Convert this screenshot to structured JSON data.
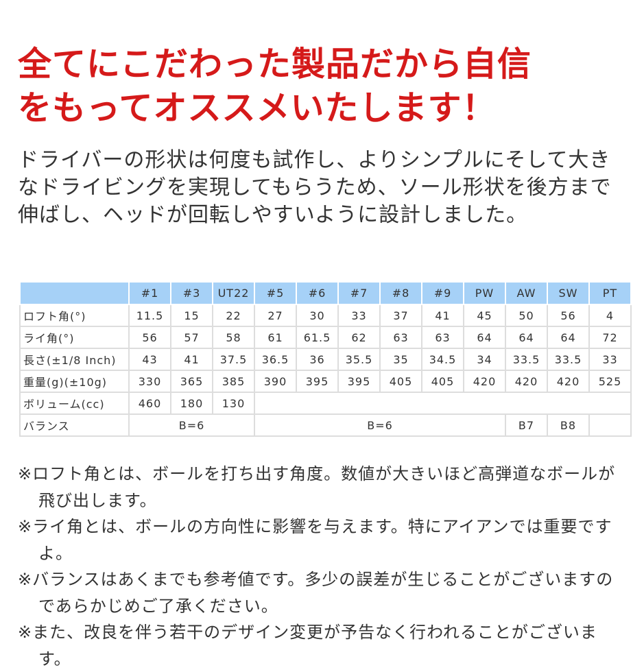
{
  "title": [
    "全てにこだわった製品だから自信",
    "をもってオススメいたします！"
  ],
  "intro": "ドライバーの形状は何度も試作し、よりシンプルにそして大きなドライビングを実現してもらうため、ソール形状を後方まで伸ばし、ヘッドが回転しやすいように設計しました。",
  "table": {
    "header_color": "#a6d1f7",
    "columns": [
      "#1",
      "#3",
      "UT22",
      "#5",
      "#6",
      "#7",
      "#8",
      "#9",
      "PW",
      "AW",
      "SW",
      "PT"
    ],
    "rows": [
      {
        "label": "ロフト角(°)",
        "values": [
          "11.5",
          "15",
          "22",
          "27",
          "30",
          "33",
          "37",
          "41",
          "45",
          "50",
          "56",
          "4"
        ]
      },
      {
        "label": "ライ角(°)",
        "values": [
          "56",
          "57",
          "58",
          "61",
          "61.5",
          "62",
          "63",
          "63",
          "64",
          "64",
          "64",
          "72"
        ]
      },
      {
        "label": "長さ(±1/8 Inch)",
        "values": [
          "43",
          "41",
          "37.5",
          "36.5",
          "36",
          "35.5",
          "35",
          "34.5",
          "34",
          "33.5",
          "33.5",
          "33"
        ]
      },
      {
        "label": "重量(g)(±10g)",
        "values": [
          "330",
          "365",
          "385",
          "390",
          "395",
          "395",
          "405",
          "405",
          "420",
          "420",
          "420",
          "525"
        ]
      },
      {
        "label": "ボリューム(cc)",
        "values": [
          "460",
          "180",
          "130"
        ]
      },
      {
        "label": "バランス",
        "values": [
          "B=6",
          "B=6",
          "B7",
          "B8",
          ""
        ]
      }
    ]
  },
  "notes": [
    "※ロフト角とは、ボールを打ち出す角度。数値が大きいほど高弾道なボールが飛び出します。",
    "※ライ角とは、ボールの方向性に影響を与えます。特にアイアンでは重要ですよ。",
    "※バランスはあくまでも参考値です。多少の誤差が生じることがございますのであらかじめご了承ください。",
    "※また、改良を伴う若干のデザイン変更が予告なく行われることがございます。"
  ]
}
